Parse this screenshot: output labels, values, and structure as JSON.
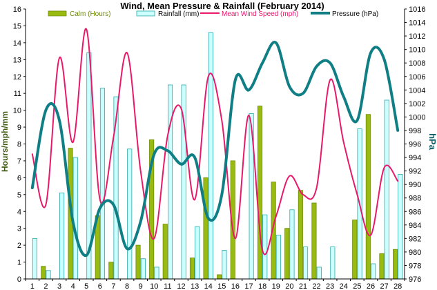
{
  "chart_data": {
    "type": "bar",
    "title": "Wind, Mean Pressure & Rainfall (February 2014)",
    "ylabel_left": "Hours/mph/mm",
    "ylabel_right": "hPa",
    "x": [
      1,
      2,
      3,
      4,
      5,
      6,
      7,
      8,
      9,
      10,
      11,
      12,
      13,
      14,
      15,
      16,
      17,
      18,
      19,
      20,
      21,
      22,
      23,
      24,
      25,
      26,
      27,
      28
    ],
    "x_tick_labels": [
      "1",
      "2",
      "3",
      "4",
      "5",
      "6",
      "7",
      "8",
      "9",
      "10",
      "11",
      "12",
      "13",
      "14",
      "15",
      "16",
      "17",
      "18",
      "19",
      "20",
      "21",
      "22",
      "23",
      "24",
      "25",
      "26",
      "27",
      "28"
    ],
    "ylim_left": [
      0,
      16
    ],
    "ylim_right": [
      976,
      1016
    ],
    "y_ticks_left": [
      "0",
      "1",
      "2",
      "3",
      "4",
      "5",
      "6",
      "7",
      "8",
      "9",
      "10",
      "11",
      "12",
      "13",
      "14",
      "15",
      "16"
    ],
    "y_ticks_right": [
      "976",
      "978",
      "980",
      "982",
      "984",
      "986",
      "988",
      "990",
      "992",
      "994",
      "996",
      "998",
      "1000",
      "1002",
      "1004",
      "1006",
      "1008",
      "1010",
      "1012",
      "1014",
      "1016"
    ],
    "grid": false,
    "legend_position": "top",
    "series": [
      {
        "name": "Calm (Hours)",
        "kind": "bar",
        "axis": "left",
        "color": "#99bb11",
        "values": [
          0,
          0.75,
          0,
          7.75,
          0,
          3.75,
          1.0,
          0,
          2.0,
          8.25,
          3.25,
          0,
          1.25,
          6.0,
          0.25,
          7.0,
          0,
          10.25,
          5.75,
          3.0,
          5.25,
          4.5,
          0,
          0,
          3.5,
          9.75,
          1.5,
          1.75
        ]
      },
      {
        "name": "Rainfall (mm)",
        "kind": "bar",
        "axis": "left",
        "color": "#ccffff",
        "values": [
          2.4,
          0.5,
          5.1,
          7.2,
          13.4,
          11.3,
          10.8,
          7.7,
          1.2,
          0.7,
          11.5,
          11.5,
          3.1,
          14.6,
          1.7,
          0,
          9.8,
          3.8,
          2.6,
          4.1,
          1.9,
          0.7,
          1.9,
          0,
          8.9,
          0.9,
          10.6,
          6.2
        ]
      },
      {
        "name": "Mean Wind Speed (mph)",
        "kind": "line",
        "axis": "left",
        "color": "#e8186a",
        "values": [
          7.4,
          4.4,
          13.1,
          8.1,
          14.8,
          4.7,
          8.4,
          13.4,
          6.4,
          2.4,
          8.5,
          10.1,
          4.7,
          12.0,
          9.4,
          2.4,
          9.7,
          1.7,
          3.7,
          6.1,
          5.0,
          5.4,
          11.8,
          8.1,
          5.0,
          2.6,
          6.6,
          5.8
        ]
      },
      {
        "name": "Pressure (hPa)",
        "kind": "line",
        "axis": "right",
        "color": "#0f7f85",
        "values": [
          989.5,
          1001.0,
          999.5,
          984.5,
          979.5,
          986.5,
          987.0,
          980.5,
          984.5,
          994.5,
          995.0,
          993.0,
          994.0,
          985.0,
          988.5,
          1005.5,
          1004.0,
          1008.0,
          1011.0,
          1004.5,
          1003.5,
          1007.5,
          1008.0,
          1003.0,
          999.5,
          1009.5,
          1008.5,
          998.0
        ]
      }
    ]
  }
}
